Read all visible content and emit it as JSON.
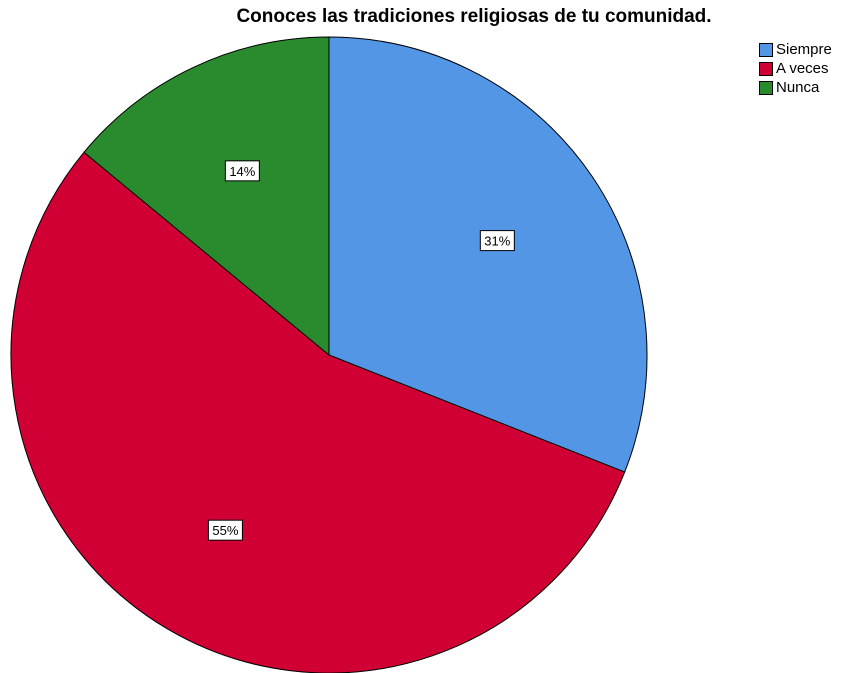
{
  "chart_data": {
    "type": "pie",
    "title": "Conoces las tradiciones religiosas de tu comunidad.",
    "categories": [
      "Siempre",
      "A veces",
      "Nunca"
    ],
    "values": [
      31,
      55,
      14
    ],
    "labels": [
      "31%",
      "55%",
      "14%"
    ],
    "colors": [
      "#5496e6",
      "#d10034",
      "#2a8a2e"
    ],
    "legend_position": "top-right",
    "start": "top",
    "direction": "clockwise"
  }
}
